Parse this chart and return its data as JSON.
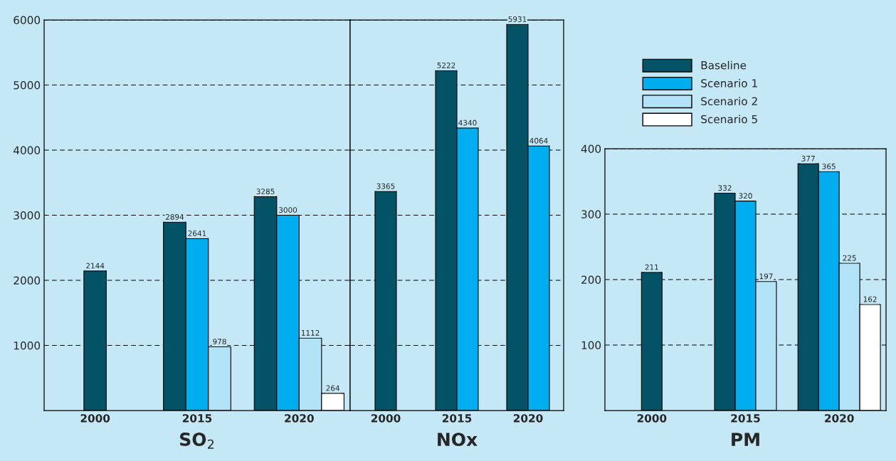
{
  "chart_data": [
    {
      "type": "bar",
      "xlabel": "SO$_{2}$",
      "categories": [
        "2000",
        "2015",
        "2020"
      ],
      "ylim": [
        0,
        6000
      ],
      "yticks": [
        1000,
        2000,
        3000,
        4000,
        5000,
        6000
      ],
      "grid": "y",
      "data_labels": true,
      "series": [
        {
          "color": "#045266",
          "values": [
            2144,
            2894,
            3285
          ]
        },
        {
          "color": "#00adef",
          "values": [
            null,
            2641,
            3000
          ]
        },
        {
          "color": "#b3e3f7",
          "values": [
            null,
            978,
            1112
          ]
        },
        {
          "color": "#ffffff",
          "values": [
            null,
            null,
            264
          ]
        }
      ]
    },
    {
      "type": "bar",
      "xlabel": "NOx",
      "categories": [
        "2000",
        "2015",
        "2020"
      ],
      "ylim": [
        0,
        6000
      ],
      "yticks": [
        1000,
        2000,
        3000,
        4000,
        5000,
        6000
      ],
      "tick_labels": "x",
      "grid": "y",
      "data_labels": true,
      "series": [
        {
          "color": "#045266",
          "values": [
            3365,
            5222,
            5931
          ]
        },
        {
          "color": "#00adef",
          "values": [
            null,
            4340,
            4064
          ]
        }
      ]
    },
    {
      "type": "bar",
      "xlabel": "PM",
      "categories": [
        "2000",
        "2015",
        "2020"
      ],
      "ylim": [
        0,
        400
      ],
      "yticks": [
        100,
        200,
        300,
        400
      ],
      "grid": "y",
      "data_labels": true,
      "legend": "top",
      "series": [
        {
          "name": "Baseline",
          "color": "#045266",
          "values": [
            211,
            332,
            377
          ]
        },
        {
          "name": "Scenario 1",
          "color": "#00adef",
          "values": [
            null,
            320,
            365
          ]
        },
        {
          "name": "Scenario 2",
          "color": "#b3e3f7",
          "values": [
            null,
            197,
            225
          ]
        },
        {
          "name": "Scenario 5",
          "color": "#ffffff",
          "values": [
            null,
            null,
            162
          ]
        }
      ]
    }
  ]
}
